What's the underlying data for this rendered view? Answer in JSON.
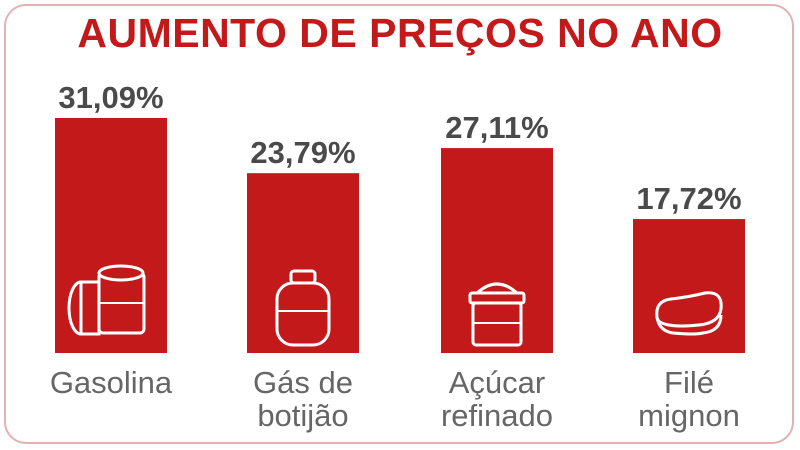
{
  "title": "AUMENTO DE PREÇOS NO ANO",
  "colors": {
    "bar": "#c4191b",
    "title": "#c4191b",
    "value_text": "#4a4a4a",
    "category_text": "#666666",
    "frame": "#e3b1b1"
  },
  "chart_data": {
    "type": "bar",
    "title": "AUMENTO DE PREÇOS NO ANO",
    "categories": [
      "Gasolina",
      "Gás de botijão",
      "Açúcar refinado",
      "Filé mignon"
    ],
    "category_lines": [
      [
        "Gasolina"
      ],
      [
        "Gás de",
        "botijão"
      ],
      [
        "Açúcar",
        "refinado"
      ],
      [
        "Filé",
        "mignon"
      ]
    ],
    "values": [
      31.09,
      23.79,
      27.11,
      17.72
    ],
    "value_labels": [
      "31,09%",
      "23,79%",
      "27,11%",
      "17,72%"
    ],
    "icons": [
      "fuel-barrel-icon",
      "gas-cylinder-icon",
      "sugar-bag-icon",
      "steak-icon"
    ],
    "ylim": [
      0,
      31.09
    ],
    "grid": false,
    "legend": "none"
  }
}
